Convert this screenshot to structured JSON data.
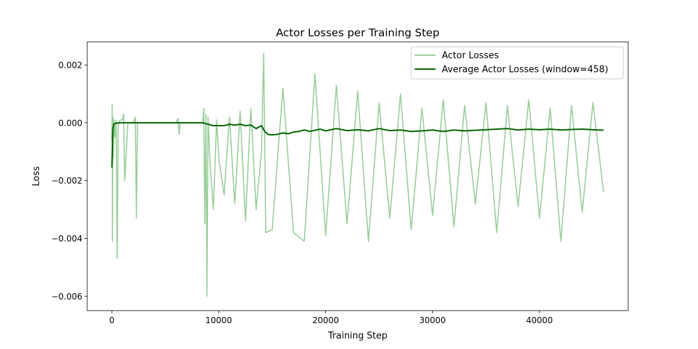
{
  "chart_data": {
    "type": "line",
    "title": "Actor Losses per Training Step",
    "xlabel": "Training Step",
    "ylabel": "Loss",
    "xlim": [
      -2300,
      48300
    ],
    "ylim": [
      -0.0065,
      0.0028
    ],
    "xticks": [
      0,
      10000,
      20000,
      30000,
      40000
    ],
    "xtick_labels": [
      "0",
      "10000",
      "20000",
      "30000",
      "40000"
    ],
    "yticks": [
      -0.006,
      -0.004,
      -0.002,
      0.0,
      0.002
    ],
    "ytick_labels": [
      "−0.006",
      "−0.004",
      "−0.002",
      "0.000",
      "0.002"
    ],
    "grid": false,
    "legend_position": "top-right",
    "series": [
      {
        "name": "Actor Losses",
        "color": "#9acd9a",
        "values_summary": "noisy per-step loss",
        "x": [
          0,
          30,
          60,
          100,
          150,
          200,
          300,
          400,
          500,
          600,
          800,
          1000,
          1100,
          1200,
          1500,
          2000,
          2200,
          2300,
          2400,
          2600,
          3000,
          4000,
          5000,
          6000,
          6200,
          6300,
          6400,
          7000,
          8000,
          8500,
          8600,
          8700,
          8800,
          8900,
          9000,
          9200,
          9500,
          9800,
          10000,
          10500,
          11000,
          11500,
          12000,
          12500,
          13000,
          13500,
          14000,
          14200,
          14400,
          15000,
          16000,
          17000,
          18000,
          19000,
          20000,
          21000,
          22000,
          23000,
          24000,
          25000,
          26000,
          27000,
          28000,
          29000,
          30000,
          31000,
          32000,
          33000,
          34000,
          35000,
          36000,
          37000,
          38000,
          39000,
          40000,
          41000,
          42000,
          43000,
          44000,
          45000,
          46000
        ],
        "y": [
          -0.0006,
          0.00065,
          -0.0041,
          0.0002,
          -0.0012,
          0.0001,
          -0.0005,
          0.0001,
          -0.0047,
          0.0,
          0.0001,
          0.0001,
          0.0003,
          -0.002,
          0.0,
          0.0,
          0.0002,
          -0.0033,
          0.0,
          0.0,
          0.0,
          0.0,
          0.0,
          0.0,
          0.00015,
          -0.0004,
          0.0,
          0.0,
          0.0,
          0.0,
          0.0005,
          -0.0035,
          0.0003,
          -0.006,
          0.0002,
          -0.0015,
          -0.003,
          0.0001,
          -0.0012,
          -0.0025,
          0.0002,
          -0.0028,
          0.0004,
          -0.0034,
          0.0005,
          -0.003,
          -0.001,
          0.0024,
          -0.0038,
          -0.0037,
          0.0012,
          -0.0038,
          -0.0041,
          0.0017,
          -0.0039,
          0.0013,
          -0.0035,
          0.0011,
          -0.0041,
          0.0007,
          -0.0033,
          0.001,
          -0.0037,
          0.0005,
          -0.0032,
          0.0008,
          -0.0036,
          0.0006,
          -0.0028,
          0.0007,
          -0.0038,
          0.0006,
          -0.0029,
          0.0008,
          -0.0033,
          0.0005,
          -0.0041,
          0.0006,
          -0.0031,
          0.0007,
          -0.0024
        ]
      },
      {
        "name": "Average Actor Losses (window=458)",
        "color": "#006400",
        "x": [
          0,
          30,
          60,
          100,
          150,
          200,
          300,
          500,
          800,
          1000,
          1500,
          2000,
          3000,
          4000,
          5000,
          6000,
          7000,
          8000,
          8500,
          9000,
          9500,
          10000,
          10500,
          11000,
          11500,
          12000,
          12500,
          13000,
          13500,
          14000,
          14300,
          14600,
          15000,
          15500,
          16000,
          16500,
          17000,
          17500,
          18000,
          18500,
          19000,
          19500,
          20000,
          21000,
          22000,
          23000,
          24000,
          25000,
          26000,
          27000,
          28000,
          29000,
          30000,
          31000,
          32000,
          33000,
          34000,
          35000,
          36000,
          37000,
          38000,
          39000,
          40000,
          41000,
          42000,
          43000,
          44000,
          45000,
          46000
        ],
        "y": [
          -0.00155,
          -0.0012,
          -0.0006,
          -0.0002,
          -0.0001,
          -5e-05,
          -2e-05,
          -1e-05,
          0.0,
          0.0,
          0.0,
          0.0,
          0.0,
          0.0,
          0.0,
          0.0,
          0.0,
          0.0,
          0.0,
          -5e-05,
          -0.0001,
          -0.0001,
          -0.0001,
          -5e-05,
          -8e-05,
          -5e-05,
          -0.0001,
          -8e-05,
          -0.0002,
          -0.0001,
          -0.0003,
          -0.0004,
          -0.00042,
          -0.0004,
          -0.00035,
          -0.00038,
          -0.00032,
          -0.0003,
          -0.00025,
          -0.0003,
          -0.00026,
          -0.00022,
          -0.00028,
          -0.0002,
          -0.00027,
          -0.00024,
          -0.00028,
          -0.0002,
          -0.00027,
          -0.00025,
          -0.0003,
          -0.00028,
          -0.00025,
          -0.0003,
          -0.00025,
          -0.00028,
          -0.00026,
          -0.00024,
          -0.00022,
          -0.0002,
          -0.00025,
          -0.00022,
          -0.00024,
          -0.00022,
          -0.00025,
          -0.00023,
          -0.00022,
          -0.00024,
          -0.00026
        ]
      }
    ]
  }
}
